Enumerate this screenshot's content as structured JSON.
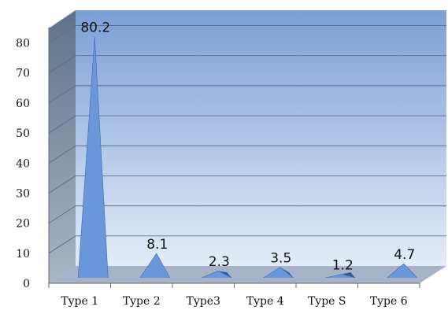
{
  "chart_data": {
    "type": "bar",
    "style": "3d-pyramid",
    "categories": [
      "Type 1",
      "Type 2",
      "Type3",
      "Type 4",
      "Type S",
      "Type 6"
    ],
    "values": [
      80.2,
      8.1,
      2.3,
      3.5,
      1.2,
      4.7
    ],
    "data_labels": [
      "80.2",
      "8.1",
      "2.3",
      "3.5",
      "1.2",
      "4.7"
    ],
    "y_ticks": [
      "0",
      "10",
      "20",
      "30",
      "40",
      "50",
      "60",
      "70",
      "80"
    ],
    "ylim": [
      0,
      85
    ],
    "grid": true,
    "legend": "none",
    "colors": {
      "wall_top": "#7c9fd6",
      "wall_bottom": "#e3ecf8",
      "side_wall": "#8395aa",
      "floor": "#a6b3c8",
      "bar_light": "#6a97dc",
      "bar_dark": "#2d5c9c"
    }
  }
}
